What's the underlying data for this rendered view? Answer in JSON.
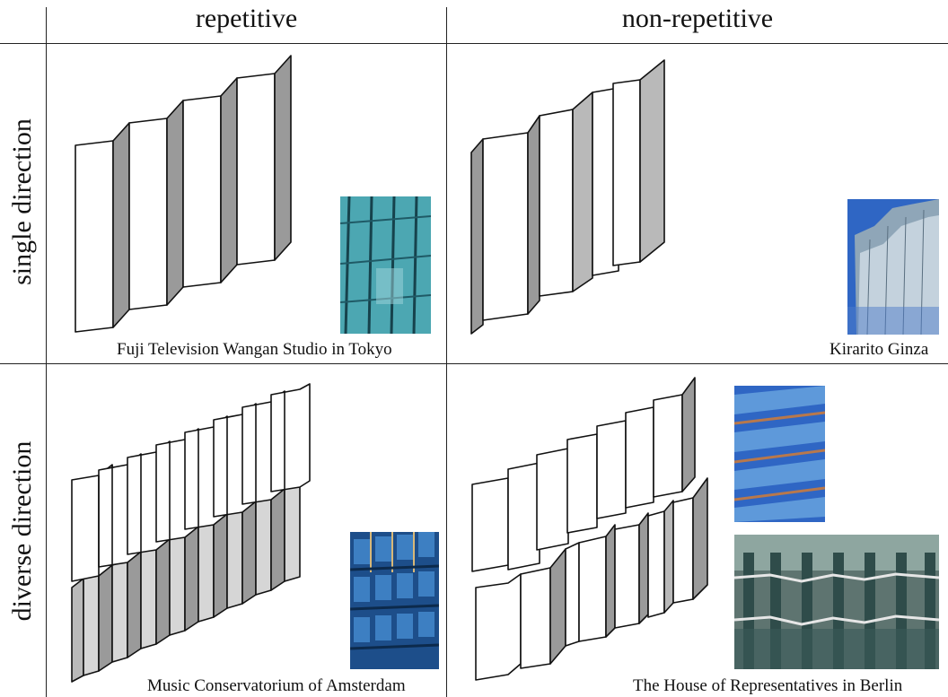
{
  "columns": {
    "repetitive": "repetitive",
    "non_repetitive": "non-repetitive"
  },
  "rows": {
    "single": "single direction",
    "diverse": "diverse direction"
  },
  "captions": {
    "fuji": "Fuji Television Wangan Studio in Tokyo",
    "kirarito": "Kirarito Ginza",
    "amsterdam": "Music Conservatorium of Amsterdam",
    "berlin": "The House of Representatives in Berlin"
  },
  "colors": {
    "dark_face": "#9a9a9a",
    "mid_face": "#b9b9b9",
    "light_face": "#d6d6d6",
    "glass": "#2f8fa0",
    "sky": "#2f66c4"
  }
}
